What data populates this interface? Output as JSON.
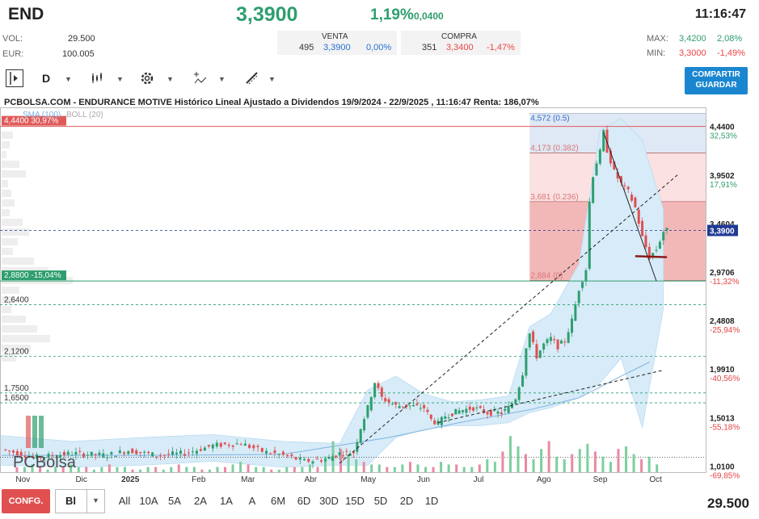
{
  "header": {
    "ticker": "END",
    "price": "3,3900",
    "change_pct": "1,19%",
    "change_abs": "0,0400",
    "time": "11:16:47",
    "vol_label": "VOL:",
    "vol_value": "29.500",
    "eur_label": "EUR:",
    "eur_value": "100.005",
    "venta_label": "VENTA",
    "venta_qty": "495",
    "venta_price": "3,3900",
    "venta_pct": "0,00%",
    "compra_label": "COMPRA",
    "compra_qty": "351",
    "compra_price": "3,3400",
    "compra_pct": "-1,47%",
    "max_label": "MAX:",
    "max_value": "3,4200",
    "max_pct": "2,08%",
    "min_label": "MIN:",
    "min_value": "3,3000",
    "min_pct": "-1,49%"
  },
  "toolbar": {
    "period": "D",
    "share_label_1": "COMPARTIR",
    "share_label_2": "GUARDAR"
  },
  "bottom": {
    "config_label": "CONFG.",
    "select_value": "Bl",
    "ranges": [
      "All",
      "10A",
      "5A",
      "2A",
      "1A",
      "A",
      "6M",
      "6D",
      "30D",
      "15D",
      "5D",
      "2D",
      "1D"
    ],
    "volume": "29.500"
  },
  "chart_data": {
    "type": "candlestick",
    "title": "PCBOLSA.COM - ENDURANCE MOTIVE Histórico Lineal Ajustado a Dividendos 19/9/2024 - 22/9/2025 , 11:16:47 Renta: 186,07%",
    "legend": [
      "SMA (100)",
      "BOLL (20)"
    ],
    "watermark": "PCBolsa",
    "x_ticks": [
      "Nov",
      "Dic",
      "2025",
      "Feb",
      "Mar",
      "Abr",
      "May",
      "Jun",
      "Jul",
      "Ago",
      "Sep",
      "Oct"
    ],
    "y_ticks": [
      {
        "value": "4,4400",
        "pct": "32,53%",
        "pct_color": "#2e9e6e"
      },
      {
        "value": "3,9502",
        "pct": "17,91%",
        "pct_color": "#2e9e6e"
      },
      {
        "value": "3,4604",
        "pct": "",
        "pct_color": "#2e9e6e"
      },
      {
        "value": "2,9706",
        "pct": "-11,32%",
        "pct_color": "#e44444"
      },
      {
        "value": "2,4808",
        "pct": "-25,94%",
        "pct_color": "#e44444"
      },
      {
        "value": "1,9910",
        "pct": "-40,56%",
        "pct_color": "#e44444"
      },
      {
        "value": "1,5013",
        "pct": "-55,18%",
        "pct_color": "#e44444"
      },
      {
        "value": "1,0100",
        "pct": "-69,85%",
        "pct_color": "#e44444"
      }
    ],
    "current_price_label": "3,3900",
    "levels": [
      {
        "value": 4.44,
        "label": "4,4400",
        "pct": "30,97%",
        "style": "red"
      },
      {
        "value": 2.88,
        "label": "2,8800",
        "pct": "-15,04%",
        "style": "green"
      },
      {
        "value": 2.64,
        "label": "2,6400",
        "style": "dashed"
      },
      {
        "value": 2.12,
        "label": "2,1200",
        "style": "dashed"
      },
      {
        "value": 1.75,
        "label": "1,7500",
        "style": "dashed"
      },
      {
        "value": 1.65,
        "label": "1,6500",
        "style": "dashed"
      }
    ],
    "fibonacci": [
      {
        "value": 4.572,
        "label": "4,572 (0.5)"
      },
      {
        "value": 4.173,
        "label": "4,173 (0.382)"
      },
      {
        "value": 3.681,
        "label": "3,681 (0.236)"
      },
      {
        "value": 2.884,
        "label": "2,884 (0)"
      }
    ],
    "price_path": [
      [
        0.0,
        1.18
      ],
      [
        0.05,
        1.1
      ],
      [
        0.1,
        1.14
      ],
      [
        0.15,
        1.12
      ],
      [
        0.18,
        1.17
      ],
      [
        0.22,
        1.12
      ],
      [
        0.26,
        1.14
      ],
      [
        0.3,
        1.22
      ],
      [
        0.34,
        1.24
      ],
      [
        0.37,
        1.16
      ],
      [
        0.4,
        1.12
      ],
      [
        0.43,
        1.06
      ],
      [
        0.46,
        1.08
      ],
      [
        0.48,
        1.14
      ],
      [
        0.5,
        1.15
      ],
      [
        0.51,
        1.4
      ],
      [
        0.52,
        1.6
      ],
      [
        0.53,
        1.86
      ],
      [
        0.54,
        1.7
      ],
      [
        0.56,
        1.62
      ],
      [
        0.58,
        1.62
      ],
      [
        0.6,
        1.6
      ],
      [
        0.61,
        1.48
      ],
      [
        0.62,
        1.44
      ],
      [
        0.63,
        1.52
      ],
      [
        0.65,
        1.57
      ],
      [
        0.67,
        1.6
      ],
      [
        0.69,
        1.55
      ],
      [
        0.71,
        1.55
      ],
      [
        0.72,
        1.6
      ],
      [
        0.73,
        1.7
      ],
      [
        0.74,
        1.95
      ],
      [
        0.745,
        2.22
      ],
      [
        0.75,
        2.35
      ],
      [
        0.76,
        2.12
      ],
      [
        0.77,
        2.24
      ],
      [
        0.78,
        2.3
      ],
      [
        0.79,
        2.22
      ],
      [
        0.8,
        2.28
      ],
      [
        0.81,
        2.48
      ],
      [
        0.82,
        2.8
      ],
      [
        0.83,
        3.0
      ],
      [
        0.835,
        3.68
      ],
      [
        0.84,
        3.95
      ],
      [
        0.845,
        4.08
      ],
      [
        0.85,
        4.18
      ],
      [
        0.855,
        4.38
      ],
      [
        0.86,
        4.2
      ],
      [
        0.87,
        3.98
      ],
      [
        0.88,
        3.86
      ],
      [
        0.89,
        3.78
      ],
      [
        0.9,
        3.62
      ],
      [
        0.91,
        3.32
      ],
      [
        0.92,
        3.12
      ],
      [
        0.93,
        3.2
      ],
      [
        0.94,
        3.38
      ],
      [
        0.945,
        3.39
      ]
    ],
    "volume_bars": [
      2,
      2,
      3,
      2,
      1,
      2,
      2,
      3,
      2,
      2,
      1,
      2,
      3,
      2,
      2,
      1,
      1,
      2,
      2,
      1,
      2,
      3,
      2,
      2,
      1,
      1,
      2,
      2,
      3,
      4,
      3,
      2,
      2,
      1,
      1,
      2,
      2,
      2,
      3,
      2,
      6,
      12,
      9,
      7,
      5,
      4,
      3,
      3,
      2,
      2,
      3,
      4,
      3,
      2,
      2,
      4,
      3,
      3,
      2,
      2,
      3,
      5,
      4,
      8,
      14,
      10,
      7,
      5,
      9,
      12,
      6,
      5,
      7,
      9,
      11,
      8,
      6,
      4,
      9,
      10,
      7,
      5,
      6,
      3
    ]
  }
}
